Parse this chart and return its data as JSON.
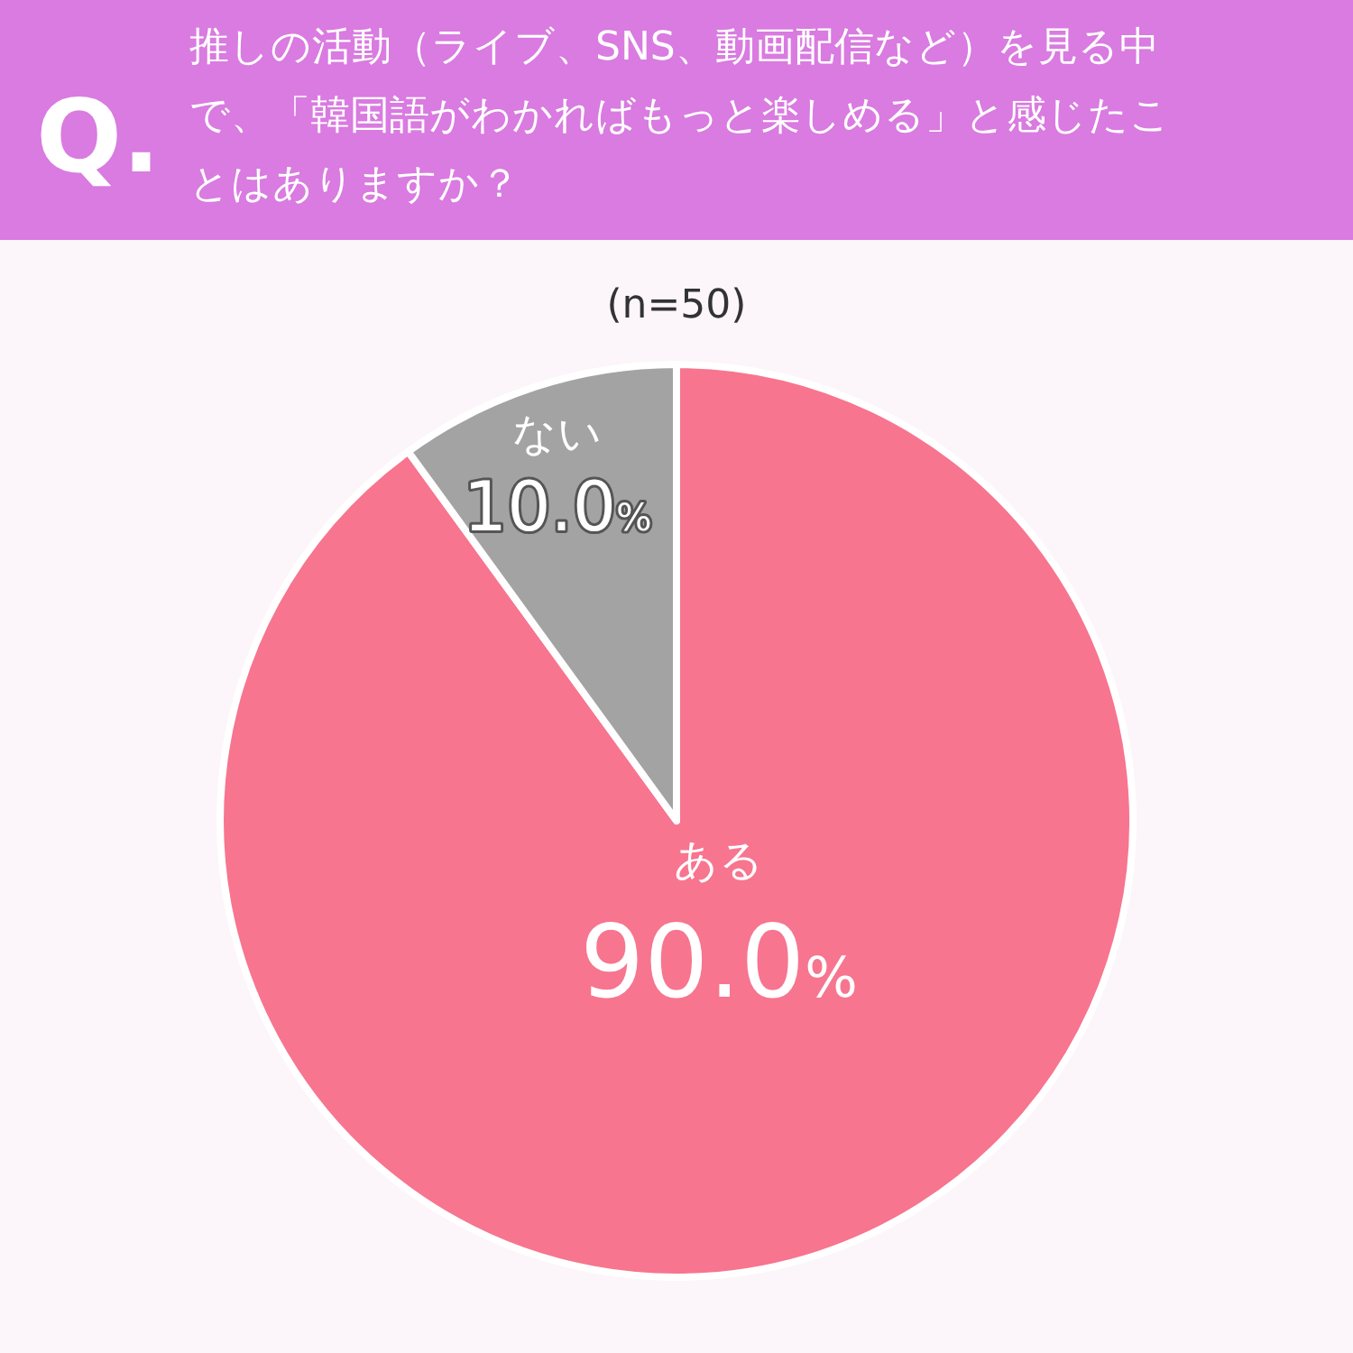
{
  "chart_data": {
    "type": "pie",
    "title": "推しの活動（ライブ、SNS、動画配信など）を見る中で、「韓国語がわかればもっと楽しめる」と感じたことはありますか？",
    "subtitle": "(n=50)",
    "annotations": [
      "Q."
    ],
    "categories": [
      "ある",
      "ない"
    ],
    "values": [
      90.0,
      10.0
    ],
    "colors": [
      "#f7758f",
      "#a3a3a3"
    ],
    "value_labels": [
      "90.0%",
      "10.0%"
    ]
  }
}
